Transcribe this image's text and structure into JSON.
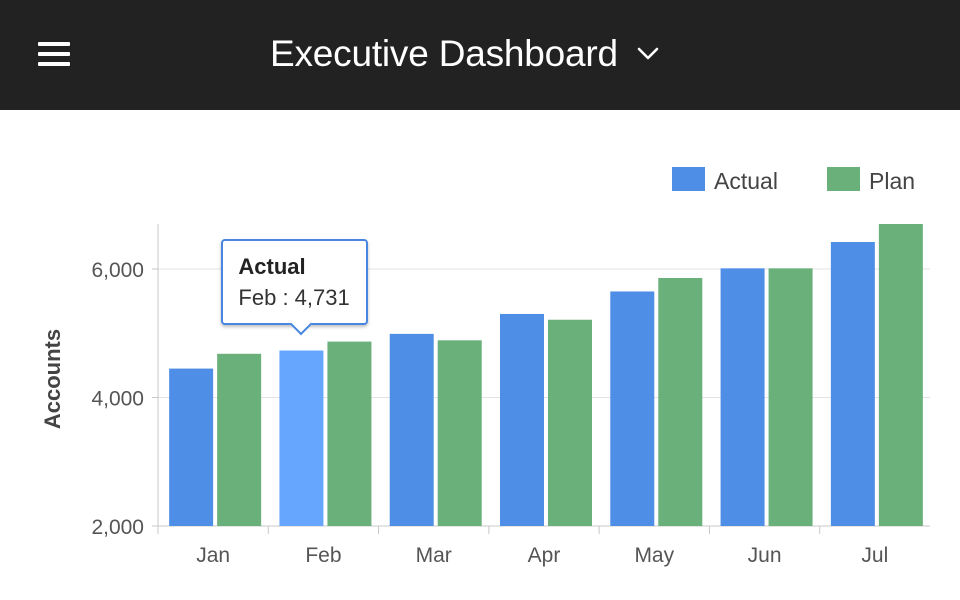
{
  "header": {
    "title": "Executive Dashboard",
    "menu_icon": "hamburger-menu-icon",
    "dropdown_icon": "chevron-down-icon",
    "background_color": "#222222"
  },
  "chart_data": {
    "type": "bar",
    "categories": [
      "Jan",
      "Feb",
      "Mar",
      "Apr",
      "May",
      "Jun",
      "Jul"
    ],
    "series": [
      {
        "name": "Actual",
        "color": "#4f8ee6",
        "values": [
          4450,
          4731,
          4990,
          5300,
          5650,
          6010,
          6420
        ]
      },
      {
        "name": "Plan",
        "color": "#6ab07a",
        "values": [
          4680,
          4870,
          4890,
          5210,
          5860,
          6010,
          6700
        ]
      }
    ],
    "ylabel": "Accounts",
    "xlabel": "",
    "ylim": [
      2000,
      6700
    ],
    "yticks": [
      2000,
      4000,
      6000
    ],
    "ytick_labels": [
      "2,000",
      "4,000",
      "6,000"
    ],
    "grid": true,
    "legend_position": "top-right",
    "highlight": {
      "series": "Actual",
      "category": "Feb",
      "color": "#66a6ff"
    }
  },
  "tooltip": {
    "title": "Actual",
    "text": "Feb : 4,731"
  }
}
